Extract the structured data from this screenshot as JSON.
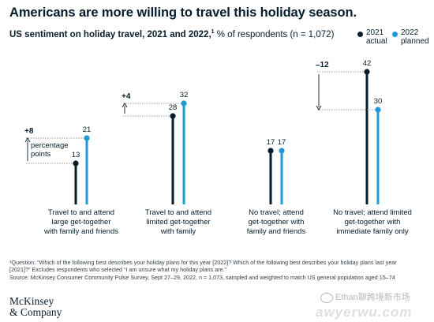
{
  "headline": "Americans are more willing to travel this holiday season.",
  "subhead": {
    "bold": "US sentiment on holiday travel, 2021 and 2022,",
    "sup": "1",
    "rest": " % of respondents (n = 1,072)"
  },
  "legend": [
    {
      "label": "2021\nactual",
      "color": "#051c2c"
    },
    {
      "label": "2022\nplanned",
      "color": "#1f9ad9"
    }
  ],
  "colors": {
    "actual_2021": "#051c2c",
    "planned_2022": "#1f9ad9",
    "text": "#051c2c"
  },
  "chart_data": {
    "type": "lollipop",
    "categories": [
      "Travel to and attend large get-together with family and friends",
      "Travel to and attend limited get-together with family",
      "No travel; attend get-together with family and friends",
      "No travel; attend limited get-together with immediate family only"
    ],
    "category_lines": [
      [
        "Travel to and attend",
        "large get-together",
        "with family and friends"
      ],
      [
        "Travel to and attend",
        "limited get-together",
        "with family"
      ],
      [
        "No travel; attend",
        "get-together with",
        "family and friends"
      ],
      [
        "No travel; attend limited",
        "get-together with",
        "immediate family only"
      ]
    ],
    "series": [
      {
        "name": "2021 actual",
        "values": [
          13,
          28,
          17,
          42
        ]
      },
      {
        "name": "2022 planned",
        "values": [
          21,
          32,
          17,
          30
        ]
      }
    ],
    "changes": [
      "+8",
      "+4",
      "",
      "–12"
    ],
    "change_note": "percentage\npoints",
    "ylim": [
      0,
      45
    ]
  },
  "footnote": [
    "¹Question: “Which of the following best describes your holiday plans for this year [2022]? Which of the following best describes your holiday plans last year",
    "[2021]?” Excludes respondents who selected “I am unsure what my holiday plans are.”",
    "Source: McKinsey Consumer Community Pulse Survey, Sept 27–29, 2022, n = 1,073, sampled and weighted to match US general population aged 15–74"
  ],
  "logo": [
    "McKinsey",
    "& Company"
  ],
  "watermark": "Ethan聊跨境新市场",
  "watermark2": "awyerwu.com"
}
